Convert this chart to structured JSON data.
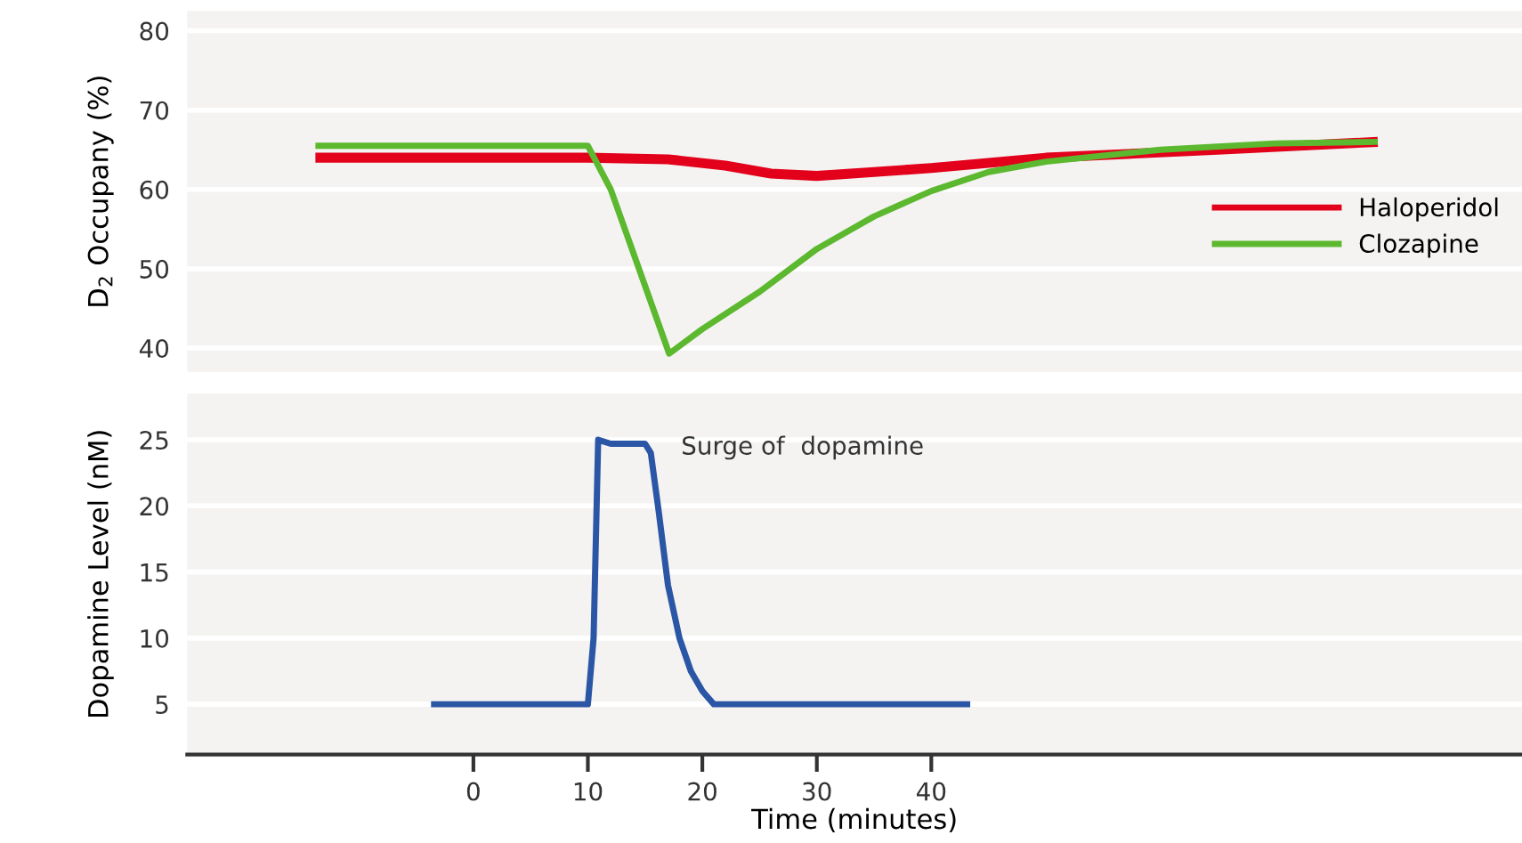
{
  "chart_data": [
    {
      "type": "line",
      "ylabel": "D$_{2}$ Occupany (%)",
      "xlim": [
        -25,
        91.6
      ],
      "ylim": [
        37,
        82.5
      ],
      "yticks": [
        40,
        50,
        60,
        70,
        80
      ],
      "tick_labels": "y",
      "grid": "y",
      "legend": "right",
      "line_style": "solid",
      "series": [
        {
          "name": "Haloperidol",
          "color": "#e2001a",
          "x": [
            -13.8,
            10,
            17,
            22,
            26,
            30,
            35,
            40,
            50,
            65,
            79
          ],
          "values": [
            64,
            64,
            63.8,
            63,
            62,
            61.7,
            62.2,
            62.7,
            64,
            65,
            66
          ]
        },
        {
          "name": "Clozapine",
          "color": "#5cb82e",
          "x": [
            -13.8,
            10,
            12,
            17.1,
            20,
            25,
            30,
            35,
            40,
            45,
            50,
            60,
            70,
            79
          ],
          "values": [
            65.5,
            65.5,
            60,
            39.3,
            42.4,
            47.1,
            52.5,
            56.6,
            59.8,
            62.2,
            63.5,
            65,
            65.8,
            66
          ]
        }
      ]
    },
    {
      "type": "line",
      "ylabel": "Dopamine Level (nM)",
      "xlabel": "Time (minutes)",
      "xlim": [
        -25,
        91.6
      ],
      "ylim": [
        1.2,
        28.5
      ],
      "xticks": [
        0,
        10,
        20,
        30,
        40
      ],
      "yticks": [
        5,
        10,
        15,
        20,
        25
      ],
      "grid": "y",
      "line_style": "solid",
      "annotations": [
        "Surge of  dopamine"
      ],
      "series": [
        {
          "color": "#2a56a5",
          "x": [
            -3.7,
            10,
            10.5,
            10.9,
            12,
            15,
            15.5,
            16.2,
            17,
            18,
            19,
            20,
            21,
            43.4
          ],
          "values": [
            5,
            5,
            10,
            25,
            24.7,
            24.7,
            24,
            19.5,
            14,
            10,
            7.5,
            6,
            5,
            5
          ]
        }
      ]
    }
  ]
}
